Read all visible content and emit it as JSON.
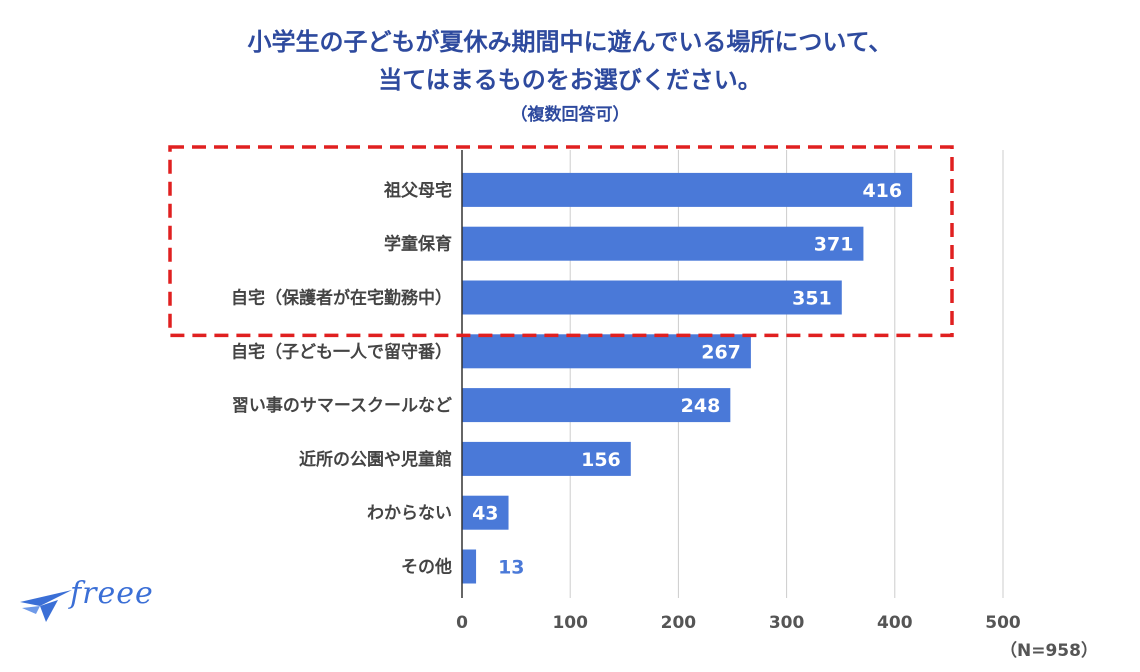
{
  "title": {
    "line1": "小学生の子どもが夏休み期間中に遊んでいる場所について、",
    "line2": "当てはまるものをお選びください。",
    "line3": "（複数回答可）"
  },
  "sample_note": "（N=958）",
  "logo": {
    "text": "freee"
  },
  "colors": {
    "bar": "#4a79d8",
    "highlight": "#e02020",
    "title": "#2e4a9e"
  },
  "chart_data": {
    "type": "bar",
    "orientation": "horizontal",
    "categories": [
      "祖父母宅",
      "学童保育",
      "自宅（保護者が在宅勤務中）",
      "自宅（子ども一人で留守番）",
      "習い事のサマースクールなど",
      "近所の公園や児童館",
      "わからない",
      "その他"
    ],
    "values": [
      416,
      371,
      351,
      267,
      248,
      156,
      43,
      13
    ],
    "xlim": [
      0,
      500
    ],
    "xticks": [
      0,
      100,
      200,
      300,
      400,
      500
    ],
    "highlighted_categories": [
      "祖父母宅",
      "学童保育",
      "自宅（保護者が在宅勤務中）"
    ]
  }
}
